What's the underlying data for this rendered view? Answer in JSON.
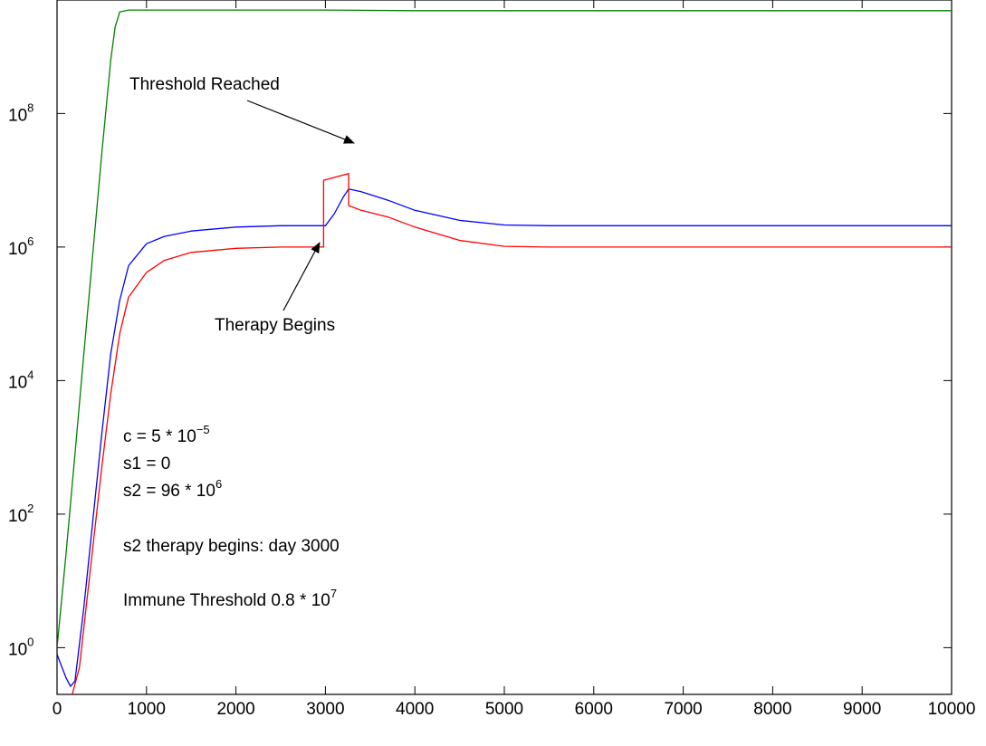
{
  "chart_data": {
    "type": "line",
    "title": "",
    "xlabel": "",
    "ylabel": "",
    "xlim": [
      0,
      10000
    ],
    "ylim_log10": [
      -0.7,
      9.7
    ],
    "y_scale": "log",
    "grid": false,
    "x_ticks": [
      0,
      1000,
      2000,
      3000,
      4000,
      5000,
      6000,
      7000,
      8000,
      9000,
      10000
    ],
    "y_ticks": [
      {
        "base": "10",
        "exp": "0",
        "log10": 0
      },
      {
        "base": "10",
        "exp": "2",
        "log10": 2
      },
      {
        "base": "10",
        "exp": "4",
        "log10": 4
      },
      {
        "base": "10",
        "exp": "6",
        "log10": 6
      },
      {
        "base": "10",
        "exp": "8",
        "log10": 8
      }
    ],
    "series": [
      {
        "color": "#008000",
        "x": [
          0,
          100,
          200,
          300,
          400,
          500,
          600,
          650,
          700,
          800,
          1000,
          2000,
          3000,
          4000,
          5000,
          6000,
          7000,
          8000,
          9000,
          10000
        ],
        "log10": [
          0.0,
          1.4,
          2.9,
          4.4,
          5.9,
          7.4,
          8.8,
          9.3,
          9.52,
          9.55,
          9.55,
          9.55,
          9.55,
          9.54,
          9.54,
          9.54,
          9.54,
          9.54,
          9.54,
          9.54
        ]
      },
      {
        "color": "#0000ff",
        "x": [
          0,
          100,
          150,
          200,
          300,
          400,
          500,
          600,
          700,
          800,
          1000,
          1200,
          1500,
          2000,
          2500,
          3000,
          3100,
          3200,
          3260,
          3400,
          3700,
          4000,
          4500,
          5000,
          5500,
          6000,
          7000,
          8000,
          9000,
          10000
        ],
        "log10": [
          -0.1,
          -0.45,
          -0.58,
          -0.5,
          0.6,
          1.9,
          3.2,
          4.4,
          5.2,
          5.72,
          6.05,
          6.16,
          6.24,
          6.3,
          6.32,
          6.32,
          6.5,
          6.75,
          6.87,
          6.83,
          6.7,
          6.55,
          6.4,
          6.33,
          6.32,
          6.32,
          6.32,
          6.32,
          6.32,
          6.32
        ]
      },
      {
        "color": "#ff0000",
        "x": [
          170,
          250,
          300,
          400,
          500,
          600,
          700,
          800,
          1000,
          1200,
          1500,
          2000,
          2500,
          2980,
          2980,
          3260,
          3260,
          3400,
          3700,
          4000,
          4500,
          5000,
          5500,
          6000,
          7000,
          8000,
          9000,
          10000
        ],
        "log10": [
          -0.7,
          -0.3,
          0.3,
          1.5,
          2.7,
          3.8,
          4.7,
          5.25,
          5.62,
          5.8,
          5.92,
          5.98,
          6.0,
          6.0,
          7.0,
          7.1,
          6.62,
          6.55,
          6.45,
          6.3,
          6.1,
          6.01,
          6.0,
          6.0,
          6.0,
          6.0,
          6.0,
          6.0
        ]
      }
    ],
    "annotations": {
      "threshold": {
        "text": "Threshold Reached"
      },
      "therapy": {
        "text": "Therapy Begins"
      },
      "params": {
        "c_prefix": "c = 5 * 10",
        "c_exp": "−5",
        "s1": "s1 = 0",
        "s2_prefix": "s2 = 96 * 10",
        "s2_exp": "6",
        "day": "s2 therapy begins: day 3000",
        "imm_prefix": "Immune Threshold 0.8 * 10",
        "imm_exp": "7"
      }
    }
  }
}
